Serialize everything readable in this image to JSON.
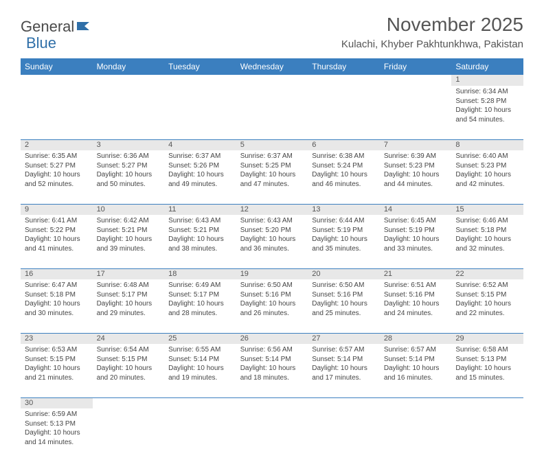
{
  "logo": {
    "part1": "General",
    "part2": "Blue"
  },
  "title": "November 2025",
  "location": "Kulachi, Khyber Pakhtunkhwa, Pakistan",
  "colors": {
    "header_bg": "#3b7fbf",
    "header_fg": "#ffffff",
    "daynum_bg": "#e8e8e8",
    "rule": "#3b7fbf"
  },
  "weekdays": [
    "Sunday",
    "Monday",
    "Tuesday",
    "Wednesday",
    "Thursday",
    "Friday",
    "Saturday"
  ],
  "weeks": [
    [
      null,
      null,
      null,
      null,
      null,
      null,
      {
        "n": "1",
        "sr": "Sunrise: 6:34 AM",
        "ss": "Sunset: 5:28 PM",
        "dl1": "Daylight: 10 hours",
        "dl2": "and 54 minutes."
      }
    ],
    [
      {
        "n": "2",
        "sr": "Sunrise: 6:35 AM",
        "ss": "Sunset: 5:27 PM",
        "dl1": "Daylight: 10 hours",
        "dl2": "and 52 minutes."
      },
      {
        "n": "3",
        "sr": "Sunrise: 6:36 AM",
        "ss": "Sunset: 5:27 PM",
        "dl1": "Daylight: 10 hours",
        "dl2": "and 50 minutes."
      },
      {
        "n": "4",
        "sr": "Sunrise: 6:37 AM",
        "ss": "Sunset: 5:26 PM",
        "dl1": "Daylight: 10 hours",
        "dl2": "and 49 minutes."
      },
      {
        "n": "5",
        "sr": "Sunrise: 6:37 AM",
        "ss": "Sunset: 5:25 PM",
        "dl1": "Daylight: 10 hours",
        "dl2": "and 47 minutes."
      },
      {
        "n": "6",
        "sr": "Sunrise: 6:38 AM",
        "ss": "Sunset: 5:24 PM",
        "dl1": "Daylight: 10 hours",
        "dl2": "and 46 minutes."
      },
      {
        "n": "7",
        "sr": "Sunrise: 6:39 AM",
        "ss": "Sunset: 5:23 PM",
        "dl1": "Daylight: 10 hours",
        "dl2": "and 44 minutes."
      },
      {
        "n": "8",
        "sr": "Sunrise: 6:40 AM",
        "ss": "Sunset: 5:23 PM",
        "dl1": "Daylight: 10 hours",
        "dl2": "and 42 minutes."
      }
    ],
    [
      {
        "n": "9",
        "sr": "Sunrise: 6:41 AM",
        "ss": "Sunset: 5:22 PM",
        "dl1": "Daylight: 10 hours",
        "dl2": "and 41 minutes."
      },
      {
        "n": "10",
        "sr": "Sunrise: 6:42 AM",
        "ss": "Sunset: 5:21 PM",
        "dl1": "Daylight: 10 hours",
        "dl2": "and 39 minutes."
      },
      {
        "n": "11",
        "sr": "Sunrise: 6:43 AM",
        "ss": "Sunset: 5:21 PM",
        "dl1": "Daylight: 10 hours",
        "dl2": "and 38 minutes."
      },
      {
        "n": "12",
        "sr": "Sunrise: 6:43 AM",
        "ss": "Sunset: 5:20 PM",
        "dl1": "Daylight: 10 hours",
        "dl2": "and 36 minutes."
      },
      {
        "n": "13",
        "sr": "Sunrise: 6:44 AM",
        "ss": "Sunset: 5:19 PM",
        "dl1": "Daylight: 10 hours",
        "dl2": "and 35 minutes."
      },
      {
        "n": "14",
        "sr": "Sunrise: 6:45 AM",
        "ss": "Sunset: 5:19 PM",
        "dl1": "Daylight: 10 hours",
        "dl2": "and 33 minutes."
      },
      {
        "n": "15",
        "sr": "Sunrise: 6:46 AM",
        "ss": "Sunset: 5:18 PM",
        "dl1": "Daylight: 10 hours",
        "dl2": "and 32 minutes."
      }
    ],
    [
      {
        "n": "16",
        "sr": "Sunrise: 6:47 AM",
        "ss": "Sunset: 5:18 PM",
        "dl1": "Daylight: 10 hours",
        "dl2": "and 30 minutes."
      },
      {
        "n": "17",
        "sr": "Sunrise: 6:48 AM",
        "ss": "Sunset: 5:17 PM",
        "dl1": "Daylight: 10 hours",
        "dl2": "and 29 minutes."
      },
      {
        "n": "18",
        "sr": "Sunrise: 6:49 AM",
        "ss": "Sunset: 5:17 PM",
        "dl1": "Daylight: 10 hours",
        "dl2": "and 28 minutes."
      },
      {
        "n": "19",
        "sr": "Sunrise: 6:50 AM",
        "ss": "Sunset: 5:16 PM",
        "dl1": "Daylight: 10 hours",
        "dl2": "and 26 minutes."
      },
      {
        "n": "20",
        "sr": "Sunrise: 6:50 AM",
        "ss": "Sunset: 5:16 PM",
        "dl1": "Daylight: 10 hours",
        "dl2": "and 25 minutes."
      },
      {
        "n": "21",
        "sr": "Sunrise: 6:51 AM",
        "ss": "Sunset: 5:16 PM",
        "dl1": "Daylight: 10 hours",
        "dl2": "and 24 minutes."
      },
      {
        "n": "22",
        "sr": "Sunrise: 6:52 AM",
        "ss": "Sunset: 5:15 PM",
        "dl1": "Daylight: 10 hours",
        "dl2": "and 22 minutes."
      }
    ],
    [
      {
        "n": "23",
        "sr": "Sunrise: 6:53 AM",
        "ss": "Sunset: 5:15 PM",
        "dl1": "Daylight: 10 hours",
        "dl2": "and 21 minutes."
      },
      {
        "n": "24",
        "sr": "Sunrise: 6:54 AM",
        "ss": "Sunset: 5:15 PM",
        "dl1": "Daylight: 10 hours",
        "dl2": "and 20 minutes."
      },
      {
        "n": "25",
        "sr": "Sunrise: 6:55 AM",
        "ss": "Sunset: 5:14 PM",
        "dl1": "Daylight: 10 hours",
        "dl2": "and 19 minutes."
      },
      {
        "n": "26",
        "sr": "Sunrise: 6:56 AM",
        "ss": "Sunset: 5:14 PM",
        "dl1": "Daylight: 10 hours",
        "dl2": "and 18 minutes."
      },
      {
        "n": "27",
        "sr": "Sunrise: 6:57 AM",
        "ss": "Sunset: 5:14 PM",
        "dl1": "Daylight: 10 hours",
        "dl2": "and 17 minutes."
      },
      {
        "n": "28",
        "sr": "Sunrise: 6:57 AM",
        "ss": "Sunset: 5:14 PM",
        "dl1": "Daylight: 10 hours",
        "dl2": "and 16 minutes."
      },
      {
        "n": "29",
        "sr": "Sunrise: 6:58 AM",
        "ss": "Sunset: 5:13 PM",
        "dl1": "Daylight: 10 hours",
        "dl2": "and 15 minutes."
      }
    ],
    [
      {
        "n": "30",
        "sr": "Sunrise: 6:59 AM",
        "ss": "Sunset: 5:13 PM",
        "dl1": "Daylight: 10 hours",
        "dl2": "and 14 minutes."
      },
      null,
      null,
      null,
      null,
      null,
      null
    ]
  ]
}
